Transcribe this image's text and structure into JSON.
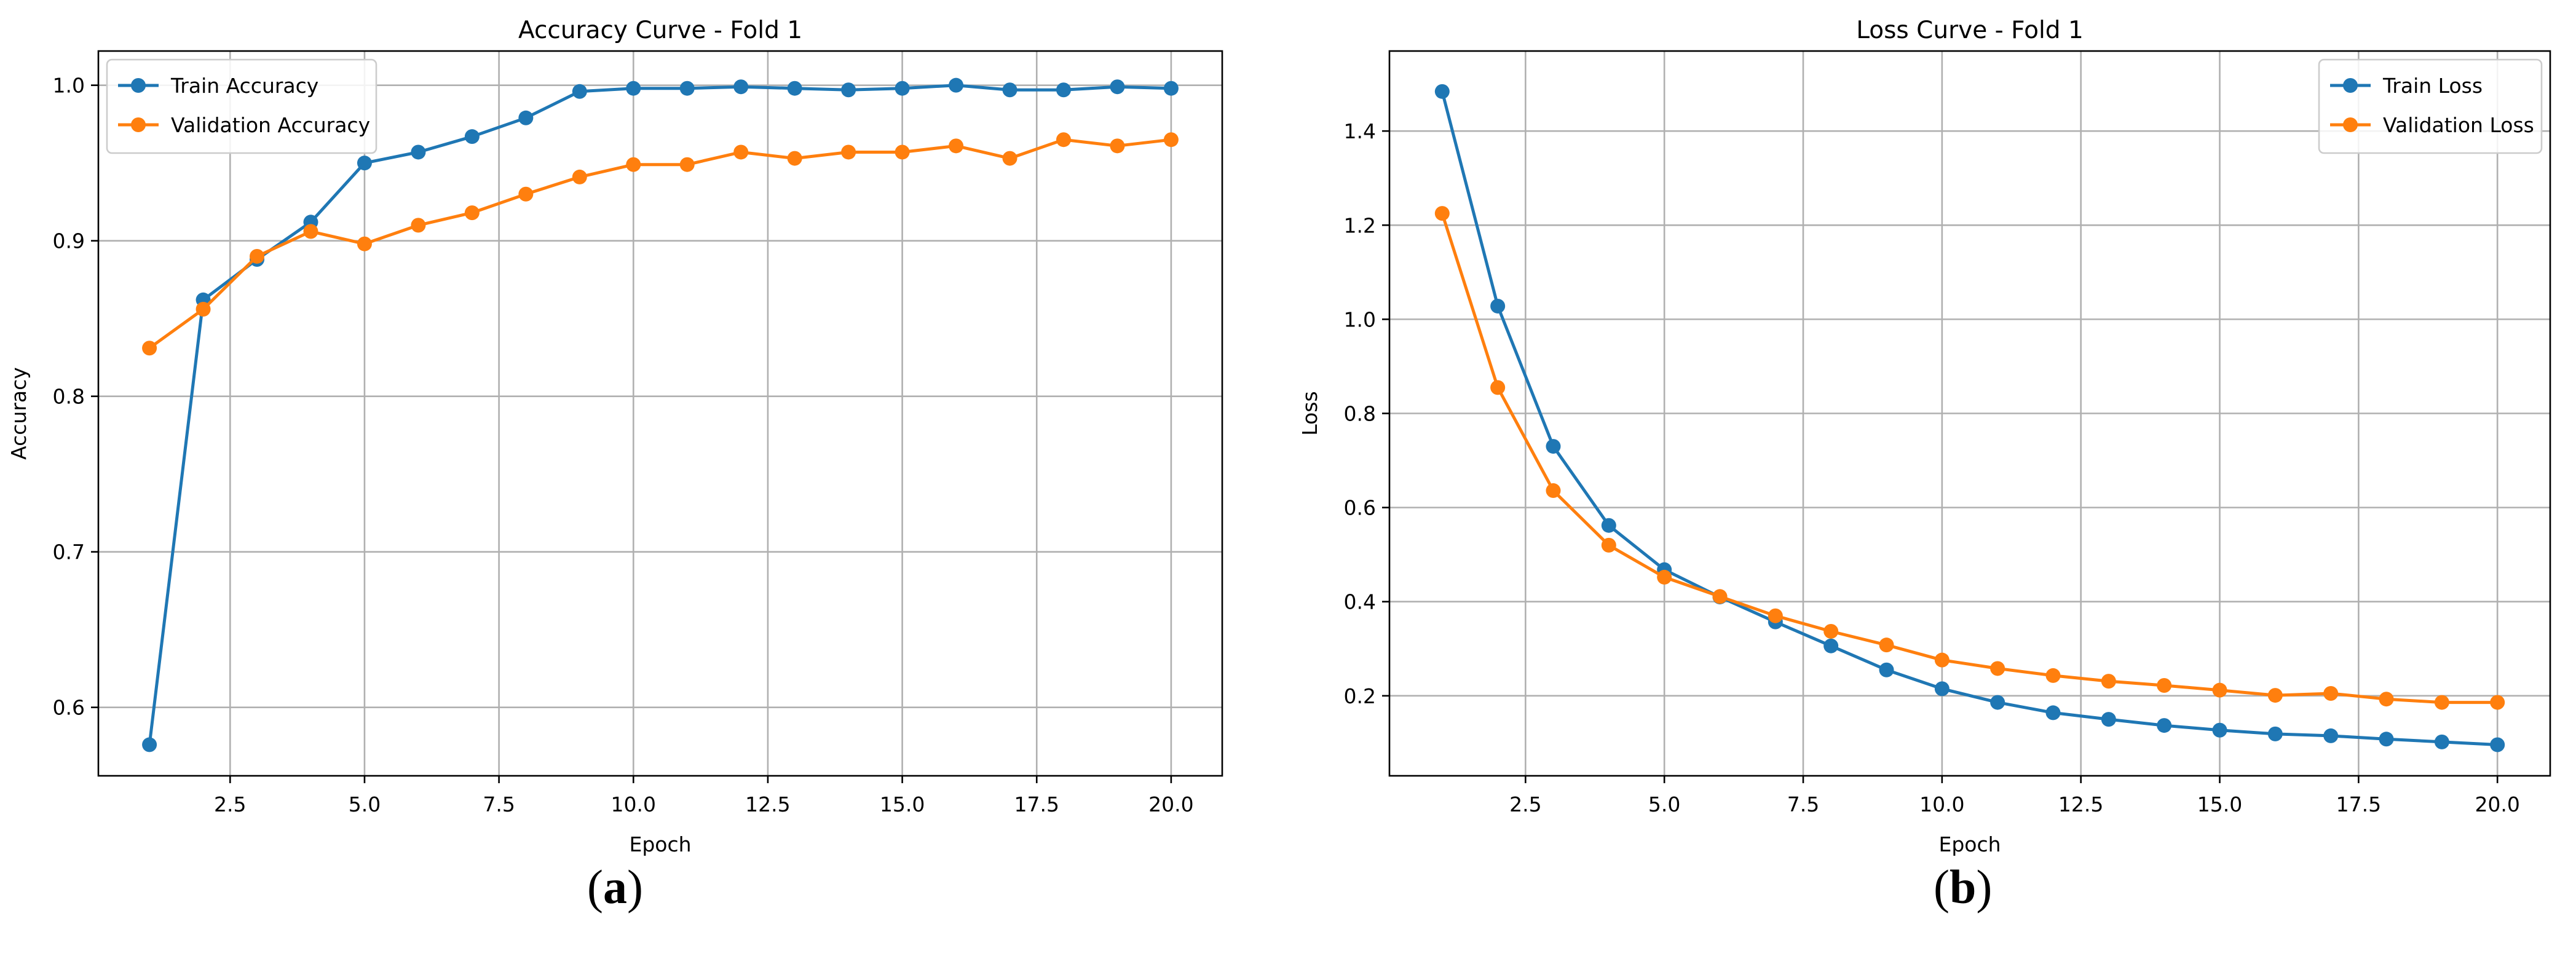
{
  "chart_data": [
    {
      "type": "line",
      "title": "Accuracy Curve - Fold 1",
      "xlabel": "Epoch",
      "ylabel": "Accuracy",
      "xlim": [
        0.05,
        20.95
      ],
      "ylim": [
        0.556,
        1.022
      ],
      "xticks": [
        2.5,
        5.0,
        7.5,
        10.0,
        12.5,
        15.0,
        17.5,
        20.0
      ],
      "xtick_labels": [
        "2.5",
        "5.0",
        "7.5",
        "10.0",
        "12.5",
        "15.0",
        "17.5",
        "20.0"
      ],
      "yticks": [
        0.6,
        0.7,
        0.8,
        0.9,
        1.0
      ],
      "ytick_labels": [
        "0.6",
        "0.7",
        "0.8",
        "0.9",
        "1.0"
      ],
      "grid": true,
      "legend_position": "top-left",
      "x": [
        1,
        2,
        3,
        4,
        5,
        6,
        7,
        8,
        9,
        10,
        11,
        12,
        13,
        14,
        15,
        16,
        17,
        18,
        19,
        20
      ],
      "series": [
        {
          "name": "Train Accuracy",
          "color": "#1f77b4",
          "values": [
            0.576,
            0.862,
            0.888,
            0.912,
            0.95,
            0.957,
            0.967,
            0.979,
            0.996,
            0.998,
            0.998,
            0.999,
            0.998,
            0.997,
            0.998,
            1.0,
            0.997,
            0.997,
            0.999,
            0.998
          ]
        },
        {
          "name": "Validation Accuracy",
          "color": "#ff7f0e",
          "values": [
            0.831,
            0.856,
            0.89,
            0.906,
            0.898,
            0.91,
            0.918,
            0.93,
            0.941,
            0.949,
            0.949,
            0.957,
            0.953,
            0.957,
            0.957,
            0.961,
            0.953,
            0.965,
            0.961,
            0.965
          ]
        }
      ]
    },
    {
      "type": "line",
      "title": "Loss Curve - Fold 1",
      "xlabel": "Epoch",
      "ylabel": "Loss",
      "xlim": [
        0.05,
        20.95
      ],
      "ylim": [
        0.03,
        1.57
      ],
      "xticks": [
        2.5,
        5.0,
        7.5,
        10.0,
        12.5,
        15.0,
        17.5,
        20.0
      ],
      "xtick_labels": [
        "2.5",
        "5.0",
        "7.5",
        "10.0",
        "12.5",
        "15.0",
        "17.5",
        "20.0"
      ],
      "yticks": [
        0.2,
        0.4,
        0.6,
        0.8,
        1.0,
        1.2,
        1.4
      ],
      "ytick_labels": [
        "0.2",
        "0.4",
        "0.6",
        "0.8",
        "1.0",
        "1.2",
        "1.4"
      ],
      "grid": true,
      "legend_position": "top-right",
      "x": [
        1,
        2,
        3,
        4,
        5,
        6,
        7,
        8,
        9,
        10,
        11,
        12,
        13,
        14,
        15,
        16,
        17,
        18,
        19,
        20
      ],
      "series": [
        {
          "name": "Train Loss",
          "color": "#1f77b4",
          "values": [
            1.484,
            1.028,
            0.73,
            0.562,
            0.468,
            0.41,
            0.357,
            0.306,
            0.255,
            0.215,
            0.186,
            0.164,
            0.15,
            0.137,
            0.127,
            0.119,
            0.115,
            0.108,
            0.102,
            0.096
          ]
        },
        {
          "name": "Validation Loss",
          "color": "#ff7f0e",
          "values": [
            1.225,
            0.855,
            0.636,
            0.52,
            0.452,
            0.411,
            0.37,
            0.337,
            0.308,
            0.276,
            0.258,
            0.243,
            0.231,
            0.222,
            0.212,
            0.201,
            0.205,
            0.193,
            0.186,
            0.186
          ]
        }
      ]
    }
  ],
  "panel_labels": {
    "a": {
      "open": "(",
      "letter": "a",
      "close": ")"
    },
    "b": {
      "open": "(",
      "letter": "b",
      "close": ")"
    }
  }
}
